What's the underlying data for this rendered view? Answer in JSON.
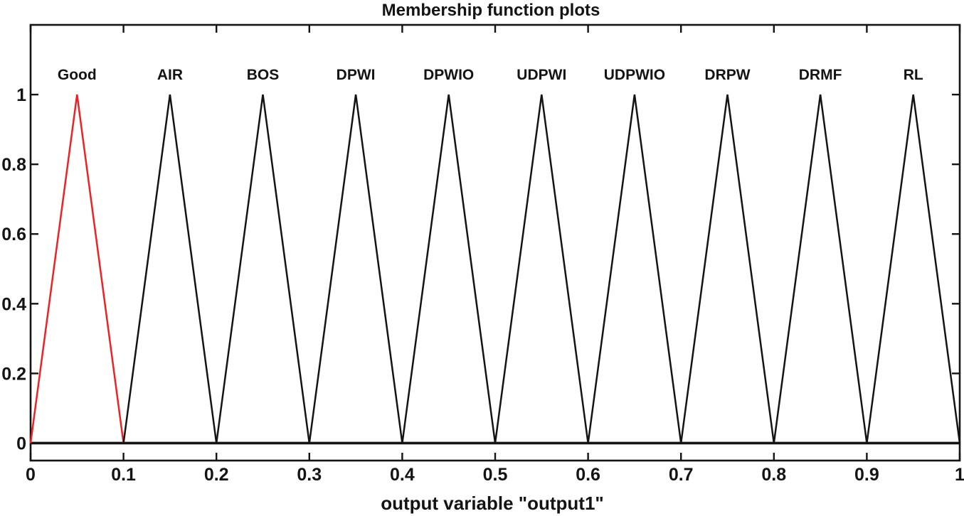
{
  "chart_data": {
    "type": "line",
    "title": "Membership function plots",
    "xlabel": "output variable \"output1\"",
    "xlim": [
      0,
      1
    ],
    "ylim": [
      -0.05,
      1.2
    ],
    "grid": false,
    "x_tick_values": [
      0,
      0.1,
      0.2,
      0.3,
      0.4,
      0.5,
      0.6,
      0.7,
      0.8,
      0.9,
      1
    ],
    "x_tick_labels": [
      "0",
      "0.1",
      "0.2",
      "0.3",
      "0.4",
      "0.5",
      "0.6",
      "0.7",
      "0.8",
      "0.9",
      "1"
    ],
    "y_tick_values": [
      0,
      0.2,
      0.4,
      0.6,
      0.8,
      1
    ],
    "y_tick_labels": [
      "0",
      "0.2",
      "0.4",
      "0.6",
      "0.8",
      "1"
    ],
    "baseline_y": 0,
    "colors": {
      "axis": "#141414",
      "default_line": "#141414",
      "highlight_line": "#ee2125"
    },
    "series": [
      {
        "label": "Good",
        "color": "#ee2125",
        "points": [
          [
            0.0,
            0
          ],
          [
            0.05,
            1
          ],
          [
            0.1,
            0
          ]
        ]
      },
      {
        "label": "AIR",
        "color": "#141414",
        "points": [
          [
            0.1,
            0
          ],
          [
            0.15,
            1
          ],
          [
            0.2,
            0
          ]
        ]
      },
      {
        "label": "BOS",
        "color": "#141414",
        "points": [
          [
            0.2,
            0
          ],
          [
            0.25,
            1
          ],
          [
            0.3,
            0
          ]
        ]
      },
      {
        "label": "DPWI",
        "color": "#141414",
        "points": [
          [
            0.3,
            0
          ],
          [
            0.35,
            1
          ],
          [
            0.4,
            0
          ]
        ]
      },
      {
        "label": "DPWIO",
        "color": "#141414",
        "points": [
          [
            0.4,
            0
          ],
          [
            0.45,
            1
          ],
          [
            0.5,
            0
          ]
        ]
      },
      {
        "label": "UDPWI",
        "color": "#141414",
        "points": [
          [
            0.5,
            0
          ],
          [
            0.55,
            1
          ],
          [
            0.6,
            0
          ]
        ]
      },
      {
        "label": "UDPWIO",
        "color": "#141414",
        "points": [
          [
            0.6,
            0
          ],
          [
            0.65,
            1
          ],
          [
            0.7,
            0
          ]
        ]
      },
      {
        "label": "DRPW",
        "color": "#141414",
        "points": [
          [
            0.7,
            0
          ],
          [
            0.75,
            1
          ],
          [
            0.8,
            0
          ]
        ]
      },
      {
        "label": "DRMF",
        "color": "#141414",
        "points": [
          [
            0.8,
            0
          ],
          [
            0.85,
            1
          ],
          [
            0.9,
            0
          ]
        ]
      },
      {
        "label": "RL",
        "color": "#141414",
        "points": [
          [
            0.9,
            0
          ],
          [
            0.95,
            1
          ],
          [
            1.0,
            0
          ]
        ]
      }
    ]
  }
}
